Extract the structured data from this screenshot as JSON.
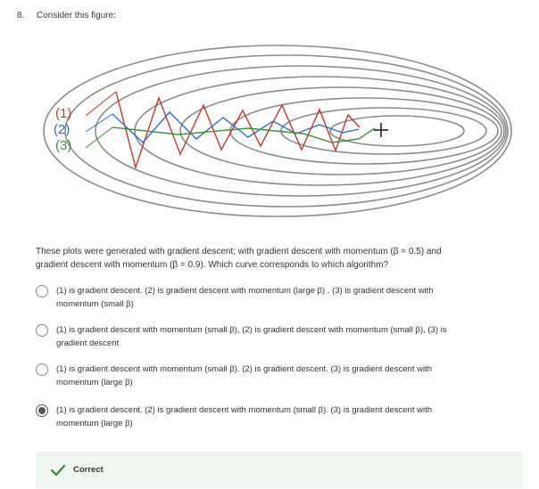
{
  "question": {
    "number": "8.",
    "prompt": "Consider this figure:",
    "body_line1": "These plots were generated with gradient descent; with gradient descent with momentum (β = 0.5) and",
    "body_line2": "gradient descent with momentum (β = 0.9). Which curve corresponds to which algorithm?"
  },
  "figure": {
    "labels": [
      {
        "text": "(1)",
        "color": "#c0392b"
      },
      {
        "text": "(2)",
        "color": "#2e6fbf"
      },
      {
        "text": "(3)",
        "color": "#3f8f3a"
      }
    ],
    "target_marker": "crosshair-icon",
    "contour_color": "#8c8c8c"
  },
  "options": [
    {
      "line1": "(1) is gradient descent. (2) is gradient descent with momentum (large β) . (3) is gradient descent with",
      "line2": "momentum (small β)",
      "selected": false
    },
    {
      "line1": "(1) is gradient descent with momentum (small β), (2) is gradient descent with momentum (small β), (3) is",
      "line2": "gradient descent",
      "selected": false
    },
    {
      "line1": "(1) is gradient descent with momentum (small β). (2) is gradient descent. (3) is gradient descent with",
      "line2": "momentum (large β)",
      "selected": false
    },
    {
      "line1": "(1) is gradient descent. (2) is gradient descent with momentum (small β). (3) is gradient descent with",
      "line2": "momentum (large β)",
      "selected": true
    }
  ],
  "feedback": {
    "label": "Correct",
    "icon": "checkmark-icon",
    "color": "#2e8b3a"
  }
}
